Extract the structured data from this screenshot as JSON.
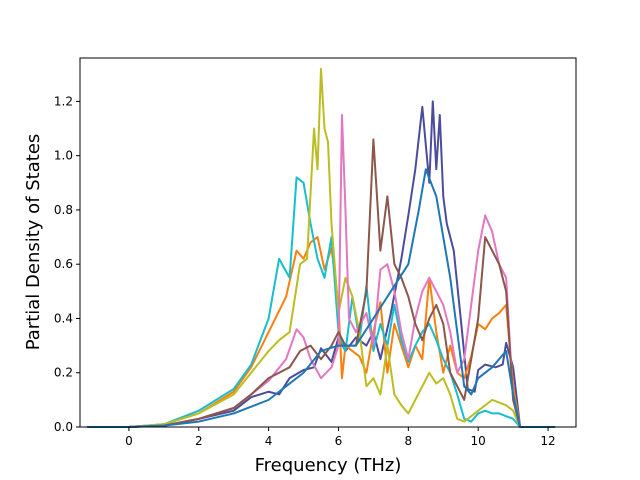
{
  "chart_data": {
    "type": "line",
    "xlabel": "Frequency (THz)",
    "ylabel": "Partial Density of States",
    "xlim": [
      -1.4,
      12.8
    ],
    "ylim": [
      0,
      1.36
    ],
    "xticks": [
      "0",
      "2",
      "4",
      "6",
      "8",
      "10",
      "12"
    ],
    "yticks": [
      "0.0",
      "0.2",
      "0.4",
      "0.6",
      "0.8",
      "1.0",
      "1.2"
    ],
    "grid": false,
    "series": [
      {
        "color": "#4c4c9c",
        "x": [
          -1.2,
          0,
          1,
          2,
          3,
          3.5,
          4,
          4.3,
          4.6,
          5,
          5.3,
          5.5,
          5.8,
          6,
          6.2,
          6.5,
          6.8,
          7,
          7.2,
          7.5,
          7.8,
          8,
          8.2,
          8.4,
          8.6,
          8.7,
          8.8,
          8.9,
          9.0,
          9.1,
          9.3,
          9.5,
          9.7,
          9.9,
          10.0,
          10.2,
          10.5,
          10.7,
          10.8,
          11.0,
          11.2,
          12.2
        ],
        "y": [
          0,
          0,
          0.005,
          0.03,
          0.06,
          0.11,
          0.13,
          0.12,
          0.18,
          0.21,
          0.22,
          0.29,
          0.24,
          0.33,
          0.28,
          0.33,
          0.3,
          0.35,
          0.25,
          0.42,
          0.62,
          0.78,
          0.95,
          1.18,
          0.9,
          1.2,
          0.95,
          1.15,
          0.85,
          0.75,
          0.65,
          0.4,
          0.14,
          0.13,
          0.21,
          0.23,
          0.22,
          0.23,
          0.31,
          0.22,
          0.0,
          0
        ]
      },
      {
        "color": "#ff7f0e",
        "x": [
          -1.2,
          0,
          1,
          2,
          3,
          3.5,
          4,
          4.5,
          4.8,
          5,
          5.2,
          5.4,
          5.6,
          5.8,
          6.0,
          6.1,
          6.2,
          6.4,
          6.6,
          6.8,
          7,
          7.2,
          7.4,
          7.6,
          7.8,
          8,
          8.2,
          8.4,
          8.6,
          8.8,
          9.0,
          9.2,
          9.4,
          9.6,
          9.8,
          10.0,
          10.2,
          10.4,
          10.6,
          10.8,
          11.0,
          11.2,
          12.2
        ],
        "y": [
          0,
          0,
          0.01,
          0.05,
          0.13,
          0.22,
          0.35,
          0.48,
          0.65,
          0.62,
          0.68,
          0.7,
          0.58,
          0.66,
          0.45,
          0.18,
          0.3,
          0.28,
          0.26,
          0.2,
          0.35,
          0.46,
          0.2,
          0.38,
          0.3,
          0.22,
          0.3,
          0.25,
          0.55,
          0.35,
          0.2,
          0.3,
          0.2,
          0.18,
          0.26,
          0.38,
          0.36,
          0.4,
          0.42,
          0.45,
          0.15,
          0.0,
          0
        ]
      },
      {
        "color": "#17becf",
        "x": [
          -1.2,
          0,
          1,
          2,
          3,
          3.5,
          4,
          4.3,
          4.6,
          4.8,
          5.0,
          5.2,
          5.4,
          5.6,
          5.8,
          6.0,
          6.2,
          6.4,
          6.6,
          6.8,
          7.0,
          7.2,
          7.4,
          7.6,
          7.8,
          8.0,
          8.2,
          8.4,
          8.6,
          8.8,
          9.0,
          9.2,
          9.4,
          9.6,
          9.8,
          10.0,
          10.2,
          10.4,
          10.6,
          10.8,
          11.0,
          11.2,
          12.2
        ],
        "y": [
          0,
          0,
          0.01,
          0.06,
          0.14,
          0.23,
          0.4,
          0.62,
          0.55,
          0.92,
          0.9,
          0.75,
          0.62,
          0.55,
          0.7,
          0.35,
          0.28,
          0.48,
          0.32,
          0.52,
          0.28,
          0.38,
          0.3,
          0.45,
          0.32,
          0.24,
          0.3,
          0.35,
          0.38,
          0.32,
          0.25,
          0.2,
          0.12,
          0.03,
          0.02,
          0.05,
          0.06,
          0.05,
          0.05,
          0.04,
          0.03,
          0.0,
          0
        ]
      },
      {
        "color": "#bcbd22",
        "x": [
          -1.2,
          0,
          1,
          2,
          3,
          3.5,
          4,
          4.3,
          4.6,
          4.9,
          5.1,
          5.3,
          5.4,
          5.5,
          5.6,
          5.7,
          5.8,
          6.0,
          6.2,
          6.4,
          6.6,
          6.8,
          7.0,
          7.2,
          7.4,
          7.6,
          7.8,
          8.0,
          8.2,
          8.4,
          8.6,
          8.8,
          9.0,
          9.2,
          9.4,
          9.6,
          9.8,
          10.0,
          10.2,
          10.4,
          10.6,
          10.8,
          11.0,
          11.2,
          12.2
        ],
        "y": [
          0,
          0,
          0.01,
          0.05,
          0.12,
          0.2,
          0.28,
          0.32,
          0.35,
          0.6,
          0.62,
          1.1,
          0.95,
          1.32,
          1.1,
          1.05,
          0.75,
          0.42,
          0.55,
          0.48,
          0.35,
          0.15,
          0.18,
          0.12,
          0.3,
          0.12,
          0.08,
          0.05,
          0.1,
          0.15,
          0.2,
          0.16,
          0.18,
          0.12,
          0.03,
          0.02,
          0.04,
          0.06,
          0.08,
          0.1,
          0.09,
          0.08,
          0.06,
          0.0,
          0
        ]
      },
      {
        "color": "#e377c2",
        "x": [
          -1.2,
          0,
          1,
          2,
          3,
          3.5,
          4,
          4.5,
          4.8,
          5.0,
          5.2,
          5.5,
          5.8,
          6.0,
          6.1,
          6.2,
          6.3,
          6.5,
          6.8,
          7.0,
          7.2,
          7.4,
          7.6,
          7.8,
          8.0,
          8.2,
          8.4,
          8.6,
          8.8,
          9.0,
          9.2,
          9.4,
          9.6,
          9.8,
          10.0,
          10.2,
          10.4,
          10.6,
          10.8,
          11.0,
          11.2,
          12.2
        ],
        "y": [
          0,
          0,
          0.005,
          0.03,
          0.07,
          0.12,
          0.17,
          0.25,
          0.36,
          0.33,
          0.25,
          0.18,
          0.22,
          0.3,
          1.15,
          0.8,
          0.4,
          0.35,
          0.42,
          0.3,
          0.58,
          0.6,
          0.5,
          0.35,
          0.25,
          0.4,
          0.5,
          0.55,
          0.5,
          0.45,
          0.35,
          0.2,
          0.25,
          0.45,
          0.65,
          0.78,
          0.72,
          0.6,
          0.55,
          0.1,
          0.0,
          0
        ]
      },
      {
        "color": "#8c564b",
        "x": [
          -1.2,
          0,
          1,
          2,
          3,
          3.5,
          4,
          4.3,
          4.6,
          4.9,
          5.2,
          5.5,
          5.8,
          6.0,
          6.2,
          6.5,
          6.8,
          7.0,
          7.2,
          7.4,
          7.6,
          7.8,
          8.0,
          8.2,
          8.4,
          8.6,
          8.8,
          9.0,
          9.2,
          9.4,
          9.6,
          9.8,
          10.0,
          10.2,
          10.4,
          10.6,
          10.8,
          11.0,
          11.2,
          12.2
        ],
        "y": [
          0,
          0,
          0.005,
          0.03,
          0.07,
          0.12,
          0.18,
          0.2,
          0.22,
          0.28,
          0.3,
          0.25,
          0.3,
          0.35,
          0.3,
          0.3,
          0.5,
          1.06,
          0.65,
          0.85,
          0.6,
          0.55,
          0.48,
          0.38,
          0.32,
          0.4,
          0.45,
          0.38,
          0.2,
          0.15,
          0.1,
          0.25,
          0.4,
          0.7,
          0.65,
          0.6,
          0.5,
          0.1,
          0.0,
          0
        ]
      },
      {
        "color": "#1f77b4",
        "x": [
          -1.2,
          0,
          1,
          2,
          3,
          4,
          4.5,
          5,
          5.5,
          6,
          6.5,
          7,
          7.5,
          8,
          8.3,
          8.5,
          8.8,
          9.0,
          9.2,
          9.4,
          9.6,
          9.8,
          10.0,
          10.4,
          10.8,
          11.0,
          11.2,
          12.2
        ],
        "y": [
          0,
          0,
          0.005,
          0.02,
          0.05,
          0.1,
          0.15,
          0.2,
          0.28,
          0.3,
          0.3,
          0.4,
          0.5,
          0.6,
          0.8,
          0.95,
          0.85,
          0.7,
          0.55,
          0.35,
          0.15,
          0.12,
          0.18,
          0.22,
          0.28,
          0.12,
          0.0,
          0
        ]
      }
    ]
  }
}
